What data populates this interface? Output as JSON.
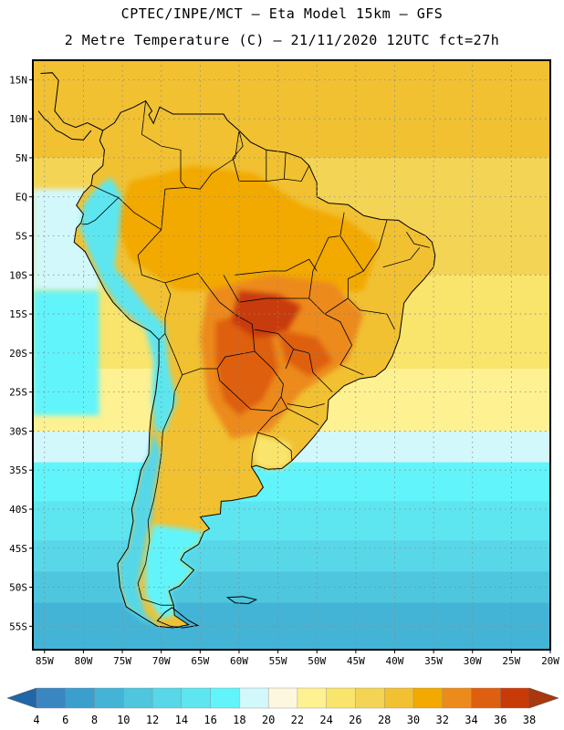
{
  "header": {
    "line1": "CPTEC/INPE/MCT –  Eta Model 15km – GFS",
    "line2": "2 Metre Temperature (C) – 21/11/2020 12UTC fct=27h"
  },
  "map": {
    "lat_range": [
      -58,
      17.5
    ],
    "lon_range": [
      -86.5,
      -20
    ],
    "lat_ticks": [
      {
        "v": 15,
        "label": "15N"
      },
      {
        "v": 10,
        "label": "10N"
      },
      {
        "v": 5,
        "label": "5N"
      },
      {
        "v": 0,
        "label": "EQ"
      },
      {
        "v": -5,
        "label": "5S"
      },
      {
        "v": -10,
        "label": "10S"
      },
      {
        "v": -15,
        "label": "15S"
      },
      {
        "v": -20,
        "label": "20S"
      },
      {
        "v": -25,
        "label": "25S"
      },
      {
        "v": -30,
        "label": "30S"
      },
      {
        "v": -35,
        "label": "35S"
      },
      {
        "v": -40,
        "label": "40S"
      },
      {
        "v": -45,
        "label": "45S"
      },
      {
        "v": -50,
        "label": "50S"
      },
      {
        "v": -55,
        "label": "55S"
      }
    ],
    "lon_ticks": [
      {
        "v": -85,
        "label": "85W"
      },
      {
        "v": -80,
        "label": "80W"
      },
      {
        "v": -75,
        "label": "75W"
      },
      {
        "v": -70,
        "label": "70W"
      },
      {
        "v": -65,
        "label": "65W"
      },
      {
        "v": -60,
        "label": "60W"
      },
      {
        "v": -55,
        "label": "55W"
      },
      {
        "v": -50,
        "label": "50W"
      },
      {
        "v": -45,
        "label": "45W"
      },
      {
        "v": -40,
        "label": "40W"
      },
      {
        "v": -35,
        "label": "35W"
      },
      {
        "v": -30,
        "label": "30W"
      },
      {
        "v": -25,
        "label": "25W"
      },
      {
        "v": -20,
        "label": "20W"
      }
    ],
    "ocean_bands": [
      {
        "lat_top": 17.5,
        "lat_bottom": 5,
        "temp_c": 28
      },
      {
        "lat_top": 5,
        "lat_bottom": 1,
        "temp_c": 26
      },
      {
        "lat_top": 1,
        "lat_bottom": -10,
        "temp_c": 26
      },
      {
        "lat_top": -10,
        "lat_bottom": -22,
        "temp_c": 24
      },
      {
        "lat_top": -22,
        "lat_bottom": -30,
        "temp_c": 22
      },
      {
        "lat_top": -30,
        "lat_bottom": -34,
        "temp_c": 18
      },
      {
        "lat_top": -34,
        "lat_bottom": -39,
        "temp_c": 16
      },
      {
        "lat_top": -39,
        "lat_bottom": -44,
        "temp_c": 14
      },
      {
        "lat_top": -44,
        "lat_bottom": -48,
        "temp_c": 12
      },
      {
        "lat_top": -48,
        "lat_bottom": -52,
        "temp_c": 10
      },
      {
        "lat_top": -52,
        "lat_bottom": -58,
        "temp_c": 8
      }
    ],
    "pacific_bands": [
      {
        "lat_top": 1,
        "lat_bottom": -12,
        "temp_c": 18
      },
      {
        "lat_top": -12,
        "lat_bottom": -28,
        "temp_c": 16
      }
    ],
    "land_regions": [
      {
        "name": "continent",
        "temp_c": 28
      },
      {
        "name": "amazon",
        "temp_c": 30
      },
      {
        "name": "central-west",
        "temp_c": 32
      },
      {
        "name": "chaco-hotspot",
        "temp_c": 34
      },
      {
        "name": "mato-grosso-hotspot",
        "temp_c": 36
      },
      {
        "name": "andes-north",
        "temp_c": 14
      },
      {
        "name": "andes-south",
        "temp_c": 12
      },
      {
        "name": "patagonia",
        "temp_c": 16
      },
      {
        "name": "uruguay",
        "temp_c": 24
      }
    ]
  },
  "colorbar": {
    "labels": [
      "4",
      "6",
      "8",
      "10",
      "12",
      "14",
      "16",
      "18",
      "20",
      "22",
      "24",
      "26",
      "28",
      "30",
      "32",
      "34",
      "36",
      "38"
    ],
    "colors": [
      "#2166a8",
      "#3a86c0",
      "#3a9fcc",
      "#44b4d6",
      "#4ec6de",
      "#57d7e8",
      "#5de6ef",
      "#62f4fb",
      "#d2f8fc",
      "#fdf7e0",
      "#fdf192",
      "#f9e46c",
      "#f4d455",
      "#f1c132",
      "#f2a900",
      "#ec8a1c",
      "#de5f0f",
      "#c83a08",
      "#a8380e"
    ]
  }
}
